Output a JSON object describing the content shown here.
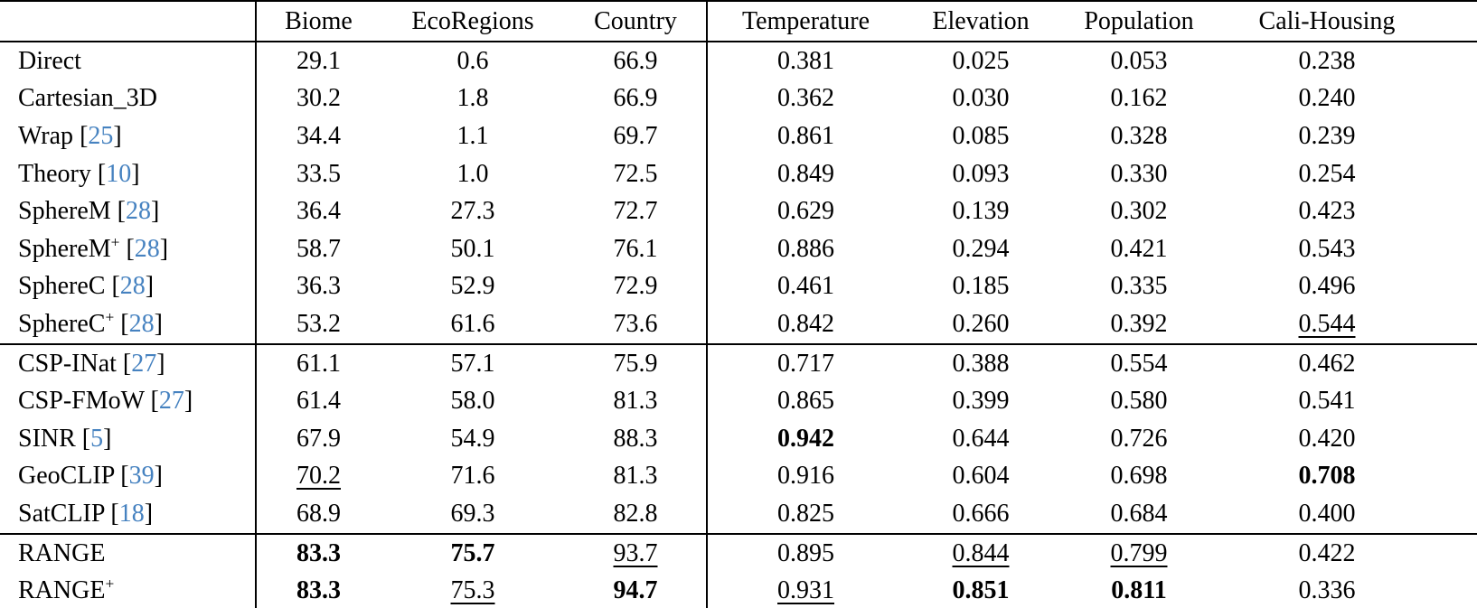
{
  "colors": {
    "citation_blue": "#4682c0",
    "text": "#000000",
    "background": "#ffffff",
    "rule": "#000000"
  },
  "table": {
    "columns": [
      "",
      "Biome",
      "EcoRegions",
      "Country",
      "Temperature",
      "Elevation",
      "Population",
      "Cali-Housing"
    ],
    "style_legend": {
      "b": "bold (best value)",
      "u": "underline (second-best value)"
    },
    "groups": [
      {
        "rows": [
          {
            "method": "Direct",
            "sup": null,
            "cite": null,
            "values": [
              "29.1",
              "0.6",
              "66.9",
              "0.381",
              "0.025",
              "0.053",
              "0.238"
            ],
            "styles": [
              "",
              "",
              "",
              "",
              "",
              "",
              ""
            ]
          },
          {
            "method": "Cartesian_3D",
            "sup": null,
            "cite": null,
            "values": [
              "30.2",
              "1.8",
              "66.9",
              "0.362",
              "0.030",
              "0.162",
              "0.240"
            ],
            "styles": [
              "",
              "",
              "",
              "",
              "",
              "",
              ""
            ]
          },
          {
            "method": "Wrap",
            "sup": null,
            "cite": "25",
            "values": [
              "34.4",
              "1.1",
              "69.7",
              "0.861",
              "0.085",
              "0.328",
              "0.239"
            ],
            "styles": [
              "",
              "",
              "",
              "",
              "",
              "",
              ""
            ]
          },
          {
            "method": "Theory",
            "sup": null,
            "cite": "10",
            "values": [
              "33.5",
              "1.0",
              "72.5",
              "0.849",
              "0.093",
              "0.330",
              "0.254"
            ],
            "styles": [
              "",
              "",
              "",
              "",
              "",
              "",
              ""
            ]
          },
          {
            "method": "SphereM",
            "sup": null,
            "cite": "28",
            "values": [
              "36.4",
              "27.3",
              "72.7",
              "0.629",
              "0.139",
              "0.302",
              "0.423"
            ],
            "styles": [
              "",
              "",
              "",
              "",
              "",
              "",
              ""
            ]
          },
          {
            "method": "SphereM",
            "sup": "+",
            "cite": "28",
            "values": [
              "58.7",
              "50.1",
              "76.1",
              "0.886",
              "0.294",
              "0.421",
              "0.543"
            ],
            "styles": [
              "",
              "",
              "",
              "",
              "",
              "",
              ""
            ]
          },
          {
            "method": "SphereC",
            "sup": null,
            "cite": "28",
            "values": [
              "36.3",
              "52.9",
              "72.9",
              "0.461",
              "0.185",
              "0.335",
              "0.496"
            ],
            "styles": [
              "",
              "",
              "",
              "",
              "",
              "",
              ""
            ]
          },
          {
            "method": "SphereC",
            "sup": "+",
            "cite": "28",
            "values": [
              "53.2",
              "61.6",
              "73.6",
              "0.842",
              "0.260",
              "0.392",
              "0.544"
            ],
            "styles": [
              "",
              "",
              "",
              "",
              "",
              "",
              "u"
            ]
          }
        ]
      },
      {
        "rows": [
          {
            "method": "CSP-INat",
            "sup": null,
            "cite": "27",
            "values": [
              "61.1",
              "57.1",
              "75.9",
              "0.717",
              "0.388",
              "0.554",
              "0.462"
            ],
            "styles": [
              "",
              "",
              "",
              "",
              "",
              "",
              ""
            ]
          },
          {
            "method": "CSP-FMoW",
            "sup": null,
            "cite": "27",
            "values": [
              "61.4",
              "58.0",
              "81.3",
              "0.865",
              "0.399",
              "0.580",
              "0.541"
            ],
            "styles": [
              "",
              "",
              "",
              "",
              "",
              "",
              ""
            ]
          },
          {
            "method": "SINR",
            "sup": null,
            "cite": "5",
            "values": [
              "67.9",
              "54.9",
              "88.3",
              "0.942",
              "0.644",
              "0.726",
              "0.420"
            ],
            "styles": [
              "",
              "",
              "",
              "b",
              "",
              "",
              ""
            ]
          },
          {
            "method": "GeoCLIP",
            "sup": null,
            "cite": "39",
            "values": [
              "70.2",
              "71.6",
              "81.3",
              "0.916",
              "0.604",
              "0.698",
              "0.708"
            ],
            "styles": [
              "u",
              "",
              "",
              "",
              "",
              "",
              "b"
            ]
          },
          {
            "method": "SatCLIP",
            "sup": null,
            "cite": "18",
            "values": [
              "68.9",
              "69.3",
              "82.8",
              "0.825",
              "0.666",
              "0.684",
              "0.400"
            ],
            "styles": [
              "",
              "",
              "",
              "",
              "",
              "",
              ""
            ]
          }
        ]
      },
      {
        "rows": [
          {
            "method": "RANGE",
            "sup": null,
            "cite": null,
            "values": [
              "83.3",
              "75.7",
              "93.7",
              "0.895",
              "0.844",
              "0.799",
              "0.422"
            ],
            "styles": [
              "b",
              "b",
              "u",
              "",
              "u",
              "u",
              ""
            ]
          },
          {
            "method": "RANGE",
            "sup": "+",
            "cite": null,
            "values": [
              "83.3",
              "75.3",
              "94.7",
              "0.931",
              "0.851",
              "0.811",
              "0.336"
            ],
            "styles": [
              "b",
              "u",
              "b",
              "u",
              "b",
              "b",
              ""
            ]
          }
        ]
      }
    ]
  }
}
